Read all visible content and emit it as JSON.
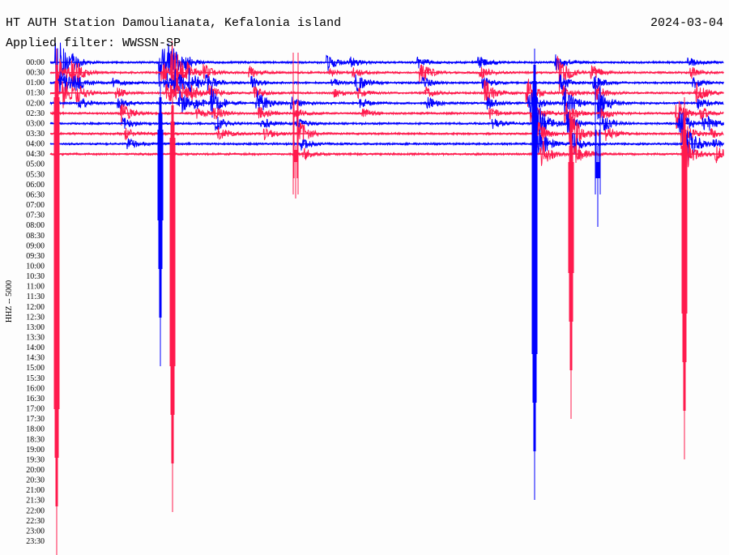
{
  "header": {
    "title": "HT AUTH Station Damoulianata, Kefalonia island",
    "date": "2024-03-04",
    "filter": "Applied filter: WWSSN-SP"
  },
  "channel_label": "HHZ -- 5000",
  "time_labels": [
    "00:00",
    "00:30",
    "01:00",
    "01:30",
    "02:00",
    "02:30",
    "03:00",
    "03:30",
    "04:00",
    "04:30",
    "05:00",
    "05:30",
    "06:00",
    "06:30",
    "07:00",
    "07:30",
    "08:00",
    "08:30",
    "09:00",
    "09:30",
    "10:00",
    "10:30",
    "11:00",
    "11:30",
    "12:00",
    "12:30",
    "13:00",
    "13:30",
    "14:00",
    "14:30",
    "15:00",
    "15:30",
    "16:00",
    "16:30",
    "17:00",
    "17:30",
    "18:00",
    "18:30",
    "19:00",
    "19:30",
    "20:00",
    "20:30",
    "21:00",
    "21:30",
    "22:00",
    "22:30",
    "23:00",
    "23:30"
  ]
}
